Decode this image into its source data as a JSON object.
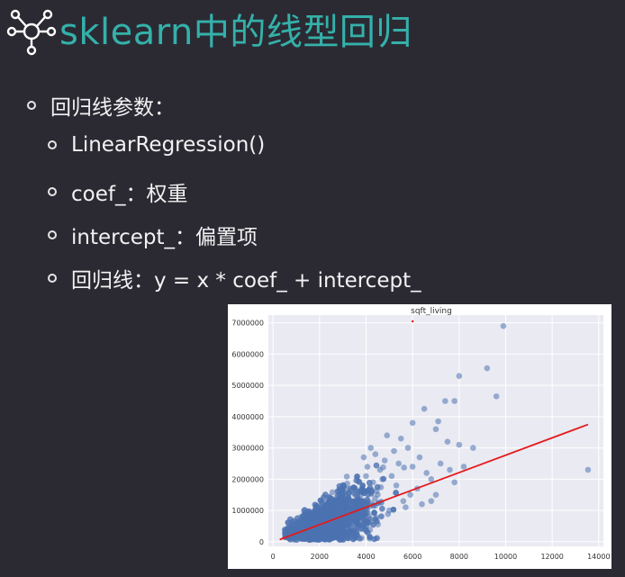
{
  "slide": {
    "title": "sklearn中的线型回归",
    "icon": "network-hub-icon",
    "accent_color": "#34b1aa",
    "background_color": "#2b2a33"
  },
  "bullets": [
    {
      "level": 1,
      "text": "回归线参数："
    },
    {
      "level": 2,
      "text": "LinearRegression()"
    },
    {
      "level": 2,
      "text": "coef_：权重"
    },
    {
      "level": 2,
      "text": "intercept_：偏置项"
    },
    {
      "level": 2,
      "text": "回归线：y = x * coef_ + intercept_"
    }
  ],
  "chart_data": {
    "type": "scatter",
    "title": "sqft_living",
    "xlabel": "",
    "ylabel": "",
    "xlim": [
      -200,
      14200
    ],
    "ylim": [
      -150000,
      7250000
    ],
    "x_ticks": [
      0,
      2000,
      4000,
      6000,
      8000,
      10000,
      12000,
      14000
    ],
    "x_tick_labels": [
      "0",
      "2000",
      "4000",
      "6000",
      "8000",
      "10000",
      "12000",
      "14000"
    ],
    "y_ticks": [
      0,
      1000000,
      2000000,
      3000000,
      4000000,
      5000000,
      6000000,
      7000000
    ],
    "y_tick_labels": [
      "0",
      "1000000",
      "2000000",
      "3000000",
      "4000000",
      "5000000",
      "6000000",
      "7000000"
    ],
    "grid": true,
    "background_color": "#eaeaf2",
    "point_color": "#4c72b0",
    "line_color": "#e31a1c",
    "series": [
      {
        "type": "scatter",
        "points": [
          [
            9900,
            6900000
          ],
          [
            9200,
            5550000
          ],
          [
            9600,
            4650000
          ],
          [
            8000,
            5300000
          ],
          [
            7800,
            4500000
          ],
          [
            7400,
            4500000
          ],
          [
            7100,
            3850000
          ],
          [
            6500,
            4250000
          ],
          [
            6000,
            3800000
          ],
          [
            7000,
            3600000
          ],
          [
            7500,
            3200000
          ],
          [
            8600,
            3000000
          ],
          [
            8000,
            3100000
          ],
          [
            13540,
            2300000
          ],
          [
            8200,
            2400000
          ],
          [
            7600,
            2300000
          ],
          [
            7200,
            2500000
          ],
          [
            6600,
            2200000
          ],
          [
            6800,
            2000000
          ],
          [
            7800,
            1900000
          ],
          [
            6300,
            2700000
          ],
          [
            5800,
            3000000
          ],
          [
            5500,
            3300000
          ],
          [
            5200,
            2900000
          ],
          [
            4900,
            3400000
          ],
          [
            5400,
            2500000
          ],
          [
            6000,
            2400000
          ],
          [
            6200,
            1700000
          ],
          [
            5900,
            1500000
          ],
          [
            5600,
            1300000
          ],
          [
            5100,
            2100000
          ],
          [
            4800,
            2600000
          ],
          [
            4600,
            2300000
          ],
          [
            7000,
            1500000
          ],
          [
            6400,
            1200000
          ],
          [
            5300,
            1800000
          ],
          [
            4700,
            2000000
          ],
          [
            4400,
            2800000
          ],
          [
            4200,
            3000000
          ],
          [
            3900,
            2700000
          ],
          [
            5700,
            1100000
          ],
          [
            6800,
            1300000
          ],
          [
            5000,
            1000000
          ],
          [
            4500,
            1500000
          ],
          [
            4300,
            1900000
          ]
        ]
      },
      {
        "type": "line",
        "name": "",
        "x": [
          290,
          13540
        ],
        "y": [
          70000,
          3750000
        ]
      }
    ]
  }
}
